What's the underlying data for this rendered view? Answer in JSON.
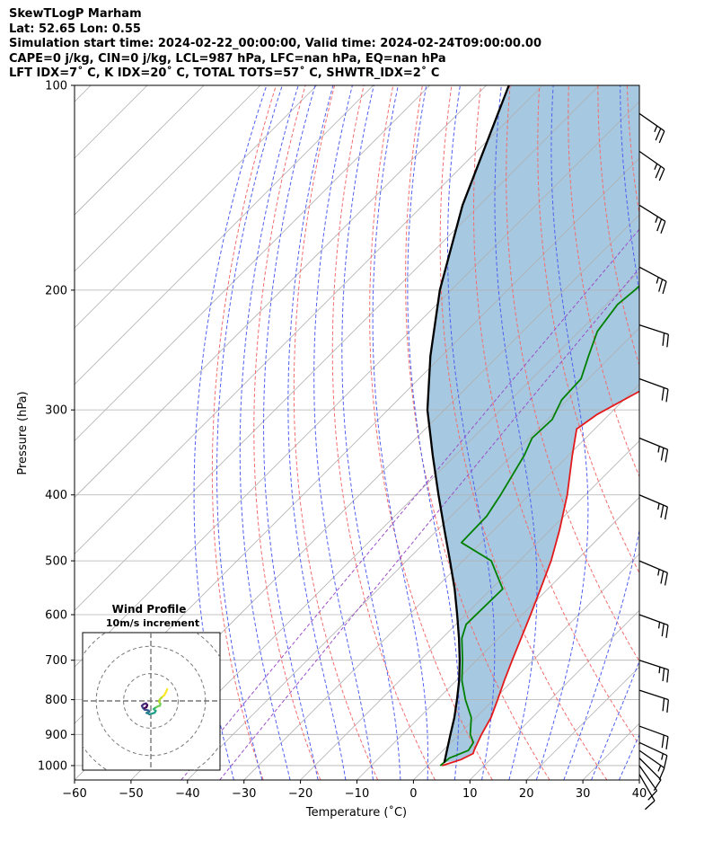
{
  "title_lines": [
    "SkewTLogP Marham",
    "Lat: 52.65   Lon: 0.55",
    "Simulation start time: 2024-02-22_00:00:00, Valid time: 2024-02-24T09:00:00.00",
    "CAPE=0 j/kg, CIN=0 j/kg, LCL=987 hPa, LFC=nan hPa, EQ=nan hPa",
    "LFT IDX=7˚ C, K IDX=20˚ C, TOTAL TOTS=57˚ C, SHWTR_IDX=2˚ C"
  ],
  "chart_data": {
    "type": "line",
    "xlabel": "Temperature (˚C)",
    "ylabel": "Pressure (hPa)",
    "x_range": [
      -60,
      40
    ],
    "p_range": [
      1050,
      100
    ],
    "x_ticks": [
      -60,
      -50,
      -40,
      -30,
      -20,
      -10,
      0,
      10,
      20,
      30,
      40
    ],
    "x_tick_labels": [
      "−60",
      "−50",
      "−40",
      "−30",
      "−20",
      "−10",
      "0",
      "10",
      "20",
      "30",
      "40"
    ],
    "p_ticks": [
      100,
      200,
      300,
      400,
      500,
      600,
      700,
      800,
      900,
      1000
    ],
    "p_tick_labels": [
      "100",
      "200",
      "300",
      "400",
      "500",
      "600",
      "700",
      "800",
      "900",
      "1000"
    ],
    "colors": {
      "temperature": "#e31a1c",
      "dewpoint": "#008000",
      "parcel": "#000000",
      "shade": "#a6c8e0",
      "dry_adiabat": "#f26d6d",
      "moist_adiabat": "#5060f0",
      "mixing_ratio": "#9b4fc8",
      "isotherm": "#b0b0b0",
      "grid": "#b0b0b0"
    },
    "series": [
      {
        "key": "temperature",
        "points": [
          [
            1000,
            2.5
          ],
          [
            980,
            4.8
          ],
          [
            960,
            5.9
          ],
          [
            950,
            5.5
          ],
          [
            900,
            4.0
          ],
          [
            850,
            2.7
          ],
          [
            800,
            0.7
          ],
          [
            750,
            -1.5
          ],
          [
            700,
            -3.7
          ],
          [
            650,
            -6.0
          ],
          [
            600,
            -8.5
          ],
          [
            550,
            -11.3
          ],
          [
            500,
            -14.4
          ],
          [
            450,
            -18.4
          ],
          [
            400,
            -23.2
          ],
          [
            350,
            -29.3
          ],
          [
            320,
            -33.2
          ],
          [
            305,
            -32.2
          ],
          [
            280,
            -28.5
          ],
          [
            250,
            -25.7
          ],
          [
            230,
            -24.5
          ],
          [
            200,
            -24.8
          ],
          [
            180,
            -25.5
          ],
          [
            160,
            -27.5
          ],
          [
            140,
            -30.0
          ],
          [
            120,
            -34.0
          ],
          [
            110,
            -37.0
          ],
          [
            100,
            -40.0
          ]
        ]
      },
      {
        "key": "dewpoint",
        "points": [
          [
            1000,
            2.2
          ],
          [
            975,
            2.5
          ],
          [
            950,
            4.5
          ],
          [
            925,
            4.0
          ],
          [
            900,
            2.0
          ],
          [
            850,
            -0.8
          ],
          [
            800,
            -5.0
          ],
          [
            750,
            -9.0
          ],
          [
            700,
            -12.5
          ],
          [
            650,
            -16.5
          ],
          [
            620,
            -18.2
          ],
          [
            550,
            -18.0
          ],
          [
            500,
            -25.0
          ],
          [
            470,
            -33.5
          ],
          [
            430,
            -33.7
          ],
          [
            400,
            -35.0
          ],
          [
            350,
            -37.8
          ],
          [
            330,
            -39.5
          ],
          [
            310,
            -39.2
          ],
          [
            290,
            -41.0
          ],
          [
            270,
            -41.3
          ],
          [
            250,
            -44.0
          ],
          [
            230,
            -46.8
          ],
          [
            210,
            -48.0
          ],
          [
            200,
            -47.5
          ],
          [
            170,
            -46.5
          ],
          [
            140,
            -48.5
          ],
          [
            120,
            -52.0
          ],
          [
            100,
            -57.0
          ]
        ]
      },
      {
        "key": "parcel",
        "points": [
          [
            990,
            2.4
          ],
          [
            950,
            0.7
          ],
          [
            900,
            -1.5
          ],
          [
            850,
            -3.8
          ],
          [
            800,
            -6.5
          ],
          [
            750,
            -9.5
          ],
          [
            700,
            -13.0
          ],
          [
            650,
            -17.0
          ],
          [
            600,
            -21.5
          ],
          [
            550,
            -26.5
          ],
          [
            500,
            -32.3
          ],
          [
            450,
            -38.8
          ],
          [
            400,
            -46.0
          ],
          [
            350,
            -54.0
          ],
          [
            300,
            -63.0
          ],
          [
            250,
            -72.0
          ],
          [
            200,
            -82.0
          ],
          [
            150,
            -93.0
          ],
          [
            100,
            -106.0
          ]
        ]
      }
    ],
    "dry_adiabats_theta_c": [
      -30,
      -20,
      -10,
      0,
      10,
      20,
      30,
      40,
      50,
      60,
      70,
      80,
      90,
      100,
      110,
      120,
      130,
      140,
      150,
      160,
      170
    ],
    "moist_adiabats_start_t_c": [
      -35,
      -30,
      -25,
      -20,
      -15,
      -10,
      -5,
      0,
      5,
      10,
      15,
      20,
      25,
      30,
      35
    ],
    "mixing_ratio_g_per_kg": [
      0.1,
      0.2
    ],
    "wind_barbs": [
      {
        "p": 1030,
        "speed_kt": 10,
        "dir_deg": 150
      },
      {
        "p": 1000,
        "speed_kt": 10,
        "dir_deg": 145
      },
      {
        "p": 975,
        "speed_kt": 10,
        "dir_deg": 135
      },
      {
        "p": 950,
        "speed_kt": 15,
        "dir_deg": 125
      },
      {
        "p": 925,
        "speed_kt": 15,
        "dir_deg": 115
      },
      {
        "p": 875,
        "speed_kt": 20,
        "dir_deg": 110
      },
      {
        "p": 775,
        "speed_kt": 20,
        "dir_deg": 108
      },
      {
        "p": 700,
        "speed_kt": 25,
        "dir_deg": 108
      },
      {
        "p": 600,
        "speed_kt": 25,
        "dir_deg": 110
      },
      {
        "p": 500,
        "speed_kt": 25,
        "dir_deg": 113
      },
      {
        "p": 400,
        "speed_kt": 25,
        "dir_deg": 113
      },
      {
        "p": 330,
        "speed_kt": 25,
        "dir_deg": 112
      },
      {
        "p": 270,
        "speed_kt": 20,
        "dir_deg": 110
      },
      {
        "p": 225,
        "speed_kt": 20,
        "dir_deg": 108
      },
      {
        "p": 185,
        "speed_kt": 25,
        "dir_deg": 118
      },
      {
        "p": 150,
        "speed_kt": 25,
        "dir_deg": 122
      },
      {
        "p": 125,
        "speed_kt": 25,
        "dir_deg": 125
      },
      {
        "p": 110,
        "speed_kt": 25,
        "dir_deg": 125
      }
    ],
    "hodograph": {
      "title": "Wind Profile",
      "subtitle": "10m/s increment",
      "ring_step_ms": 10,
      "rings": [
        1,
        2,
        3
      ],
      "range_ms": 25,
      "points": [
        [
          6.0,
          -4.3
        ],
        [
          5.5,
          -3.2
        ],
        [
          5.0,
          -2.2
        ],
        [
          4.0,
          -1.3
        ],
        [
          3.2,
          -0.5
        ],
        [
          3.0,
          0.3
        ],
        [
          3.5,
          1.0
        ],
        [
          3.3,
          1.8
        ],
        [
          2.5,
          2.0
        ],
        [
          1.5,
          2.6
        ],
        [
          1.0,
          3.0
        ],
        [
          1.8,
          3.6
        ],
        [
          1.4,
          4.3
        ],
        [
          0.6,
          4.6
        ],
        [
          -0.5,
          4.9
        ],
        [
          -1.0,
          4.6
        ],
        [
          -1.6,
          4.4
        ],
        [
          -0.5,
          3.9
        ],
        [
          -0.8,
          3.5
        ],
        [
          -1.5,
          3.3
        ],
        [
          -2.3,
          3.2
        ],
        [
          -2.9,
          2.6
        ],
        [
          -3.3,
          1.8
        ],
        [
          -2.7,
          1.2
        ],
        [
          -1.8,
          0.9
        ],
        [
          -1.3,
          1.5
        ],
        [
          -1.6,
          2.3
        ],
        [
          -2.3,
          2.6
        ]
      ]
    }
  }
}
